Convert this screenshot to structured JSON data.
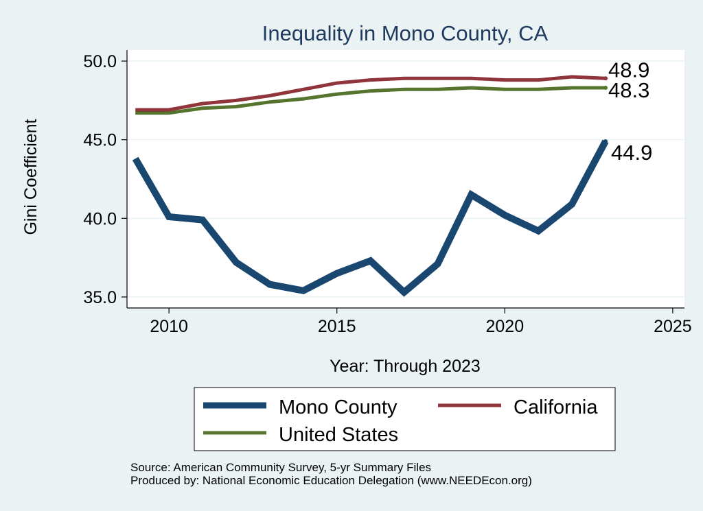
{
  "chart_data": {
    "type": "line",
    "title": "Inequality in Mono County, CA",
    "xlabel": "Year: Through 2023",
    "ylabel": "Gini Coefficient",
    "xlim": [
      2008.75,
      2025.35
    ],
    "ylim": [
      34.3,
      50.7
    ],
    "xticks": [
      2010,
      2015,
      2020,
      2025
    ],
    "xtick_labels": [
      "2010",
      "2015",
      "2020",
      "2025"
    ],
    "yticks": [
      35,
      40,
      45,
      50
    ],
    "ytick_labels": [
      "35.0",
      "40.0",
      "45.0",
      "50.0"
    ],
    "grid": true,
    "legend_position": "bottom",
    "x": [
      2009,
      2010,
      2011,
      2012,
      2013,
      2014,
      2015,
      2016,
      2017,
      2018,
      2019,
      2020,
      2021,
      2022,
      2023
    ],
    "series": [
      {
        "name": "Mono County",
        "color": "#1a476f",
        "values": [
          43.8,
          40.1,
          39.9,
          37.2,
          35.8,
          35.4,
          36.5,
          37.3,
          35.3,
          37.1,
          41.5,
          40.2,
          39.2,
          40.9,
          44.9
        ],
        "end_label": "44.9"
      },
      {
        "name": "California",
        "color": "#90353b",
        "values": [
          46.9,
          46.9,
          47.3,
          47.5,
          47.8,
          48.2,
          48.6,
          48.8,
          48.9,
          48.9,
          48.9,
          48.8,
          48.8,
          49.0,
          48.9
        ],
        "end_label": "48.9"
      },
      {
        "name": "United States",
        "color": "#55752f",
        "values": [
          46.7,
          46.7,
          47.0,
          47.1,
          47.4,
          47.6,
          47.9,
          48.1,
          48.2,
          48.2,
          48.3,
          48.2,
          48.2,
          48.3,
          48.3
        ],
        "end_label": "48.3"
      }
    ]
  },
  "footer": {
    "source": "Source: American Community Survey, 5-yr Summary Files",
    "produced_by": "Produced by: National Economic Education Delegation (www.NEEDEcon.org)"
  }
}
